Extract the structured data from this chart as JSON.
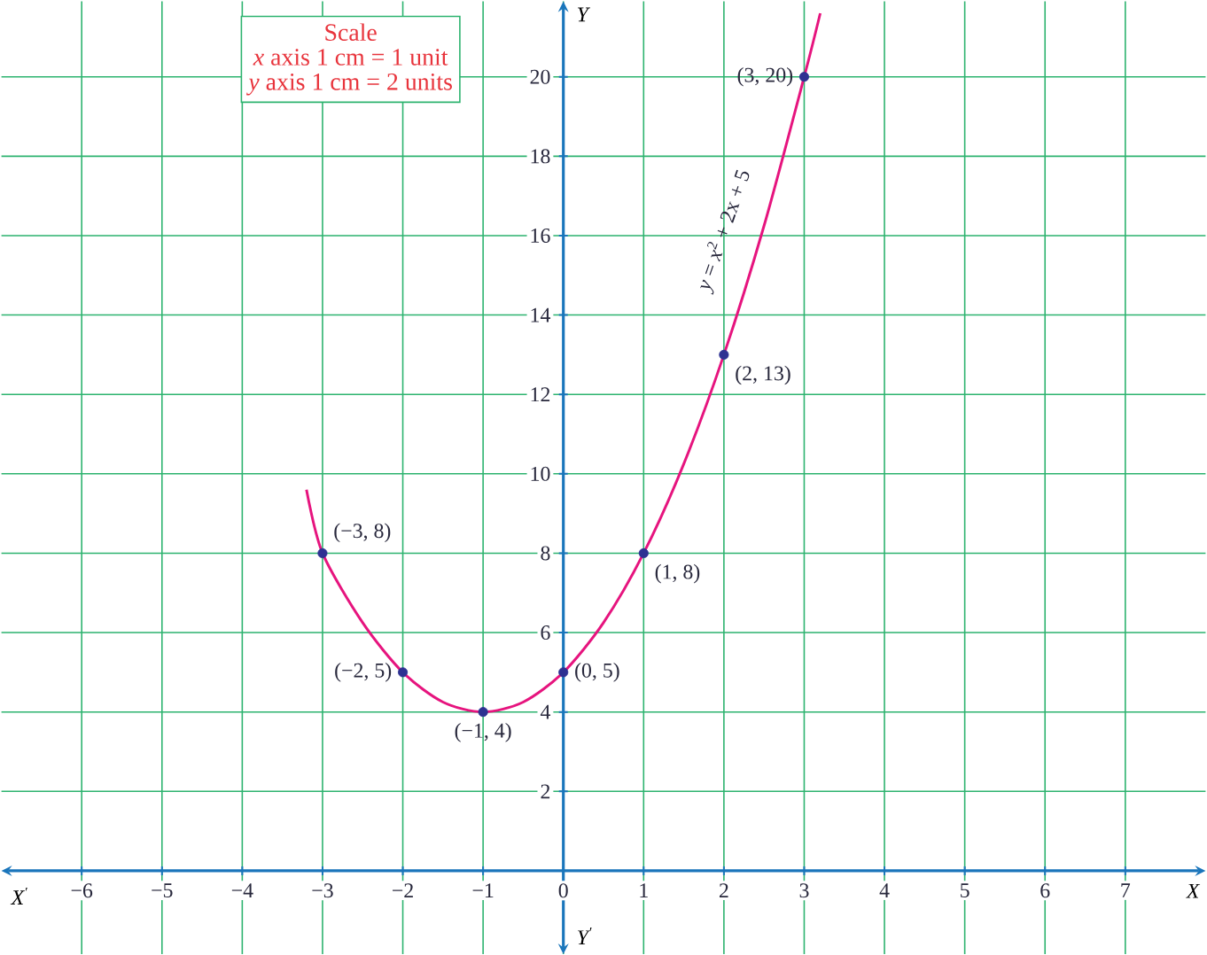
{
  "chart_data": {
    "type": "line",
    "xlabel": "X",
    "ylabel": "Y",
    "xlim": [
      -7,
      8
    ],
    "ylim": [
      -2.1,
      21.9
    ],
    "xticks": [
      {
        "value": -6,
        "label": "−6"
      },
      {
        "value": -5,
        "label": "−5"
      },
      {
        "value": -4,
        "label": "−4"
      },
      {
        "value": -3,
        "label": "−3"
      },
      {
        "value": -2,
        "label": "−2"
      },
      {
        "value": -1,
        "label": "−1"
      },
      0,
      1,
      2,
      3,
      4,
      5,
      6,
      7
    ],
    "yticks": [
      2,
      4,
      6,
      8,
      10,
      12,
      14,
      16,
      18,
      20
    ],
    "grid": true,
    "series": [
      {
        "color": "#e6147e",
        "x": [
          -3.2,
          -3,
          -2.5,
          -2,
          -1.5,
          -1,
          -0.5,
          0,
          0.5,
          1,
          1.5,
          2,
          2.5,
          3,
          3.2
        ],
        "values": [
          9.6,
          8,
          6.25,
          5,
          4.25,
          4,
          4.25,
          5,
          6.25,
          8,
          10.25,
          13,
          16.25,
          20,
          21.6
        ]
      },
      {
        "type": "scatter",
        "marker": "circle",
        "color": "#2e3192",
        "x": [
          -3,
          -2,
          -1,
          0,
          1,
          2,
          3
        ],
        "values": [
          8,
          5,
          4,
          5,
          8,
          13,
          20
        ]
      }
    ],
    "annotations": [
      "Scale",
      "*x* axis 1 cm = 1 unit",
      "*y* axis 1 cm = 2 units",
      "X$^{′}$",
      "Y$^{′}$",
      "*y* = *x*$^{2}$ + 2x + 5",
      {
        "text": "(−3, 8)",
        "x": -3,
        "y": 8
      },
      {
        "text": "(−2, 5)",
        "x": -2,
        "y": 5
      },
      {
        "text": "(−1, 4)",
        "x": -1,
        "y": 4
      },
      {
        "text": "(0, 5)",
        "x": 0,
        "y": 5
      },
      {
        "text": "(1, 8)",
        "x": 1,
        "y": 8
      },
      {
        "text": "(2, 13)",
        "x": 2,
        "y": 13
      },
      {
        "text": "(3, 20)",
        "x": 3,
        "y": 20
      }
    ]
  }
}
